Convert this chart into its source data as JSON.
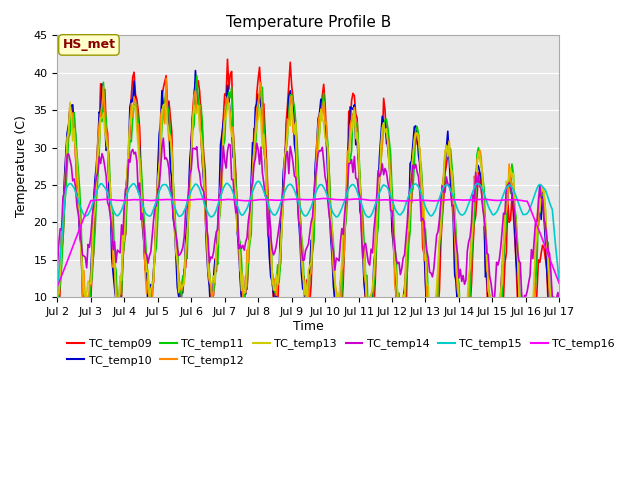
{
  "title": "Temperature Profile B",
  "xlabel": "Time",
  "ylabel": "Temperature (C)",
  "ylim": [
    10,
    45
  ],
  "yticks": [
    10,
    15,
    20,
    25,
    30,
    35,
    40,
    45
  ],
  "background_color": "#e8e8e8",
  "series_colors": {
    "TC_temp09": "#ff0000",
    "TC_temp10": "#0000cc",
    "TC_temp11": "#00cc00",
    "TC_temp12": "#ff8800",
    "TC_temp13": "#cccc00",
    "TC_temp14": "#cc00cc",
    "TC_temp15": "#00cccc",
    "TC_temp16": "#ff00ff"
  },
  "xtick_labels": [
    "Jul 2",
    "Jul 3",
    "Jul 4",
    "Jul 5",
    "Jul 6",
    "Jul 7",
    "Jul 8",
    "Jul 9",
    "Jul 10",
    "Jul 11",
    "Jul 12",
    "Jul 13",
    "Jul 14",
    "Jul 15",
    "Jul 16",
    "Jul 17"
  ],
  "xtick_positions": [
    0,
    24,
    48,
    72,
    96,
    120,
    144,
    168,
    192,
    216,
    240,
    264,
    288,
    312,
    336,
    360
  ],
  "annotation_text": "HS_met",
  "annotation_color": "#8b0000",
  "annotation_bg": "#ffffcc"
}
